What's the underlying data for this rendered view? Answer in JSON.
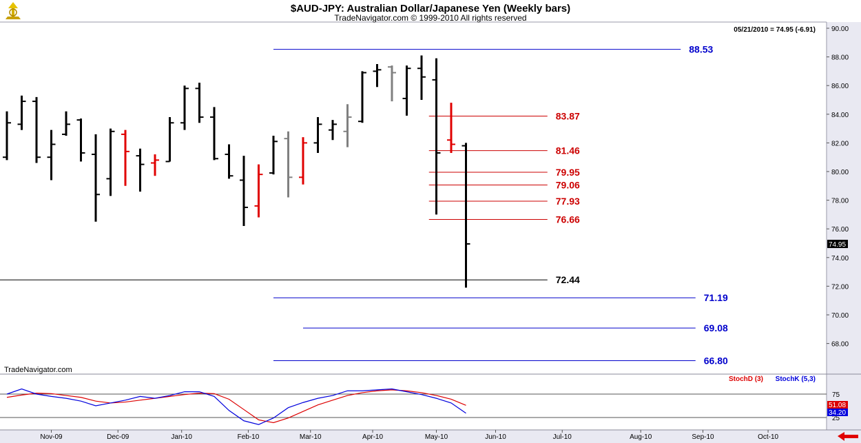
{
  "header": {
    "title": "$AUD-JPY:  Australian Dollar/Japanese Yen  (Weekly bars)",
    "copyright": "TradeNavigator.com © 1999-2010 All rights reserved",
    "last_quote": "05/21/2010 = 74.95 (-6.91)",
    "watermark": "TradeNavigator.com"
  },
  "colors": {
    "up_bar": "#000000",
    "down_bar": "#e00000",
    "neutral_bar": "#808080",
    "fib_red": "#cc0000",
    "fib_blue": "#0000cc",
    "stoch_d": "#dd0000",
    "stoch_k": "#0000dd",
    "axis_bg": "#e9e9f2"
  },
  "chart_data": {
    "type": "bar",
    "subtype": "ohlc",
    "period": "weekly",
    "ylim": [
      66.0,
      90.0
    ],
    "y_ticks": [
      "90.00",
      "88.00",
      "86.00",
      "84.00",
      "82.00",
      "80.00",
      "78.00",
      "76.00",
      "74.00",
      "72.00",
      "70.00",
      "68.00"
    ],
    "x_ticks": [
      "Nov-09",
      "Dec-09",
      "Jan-10",
      "Feb-10",
      "Mar-10",
      "Apr-10",
      "May-10",
      "Jun-10",
      "Jul-10",
      "Aug-10",
      "Sep-10",
      "Oct-10"
    ],
    "last_price_label": "74.95",
    "bars": [
      {
        "w": 0,
        "o": 81.0,
        "h": 84.2,
        "l": 80.8,
        "c": 83.4,
        "color": "black"
      },
      {
        "w": 1,
        "o": 83.3,
        "h": 85.3,
        "l": 82.9,
        "c": 84.9,
        "color": "black"
      },
      {
        "w": 2,
        "o": 84.9,
        "h": 85.2,
        "l": 80.6,
        "c": 81.0,
        "color": "black"
      },
      {
        "w": 3,
        "o": 81.0,
        "h": 82.9,
        "l": 79.4,
        "c": 81.9,
        "color": "black"
      },
      {
        "w": 4,
        "o": 82.6,
        "h": 84.2,
        "l": 82.5,
        "c": 83.3,
        "color": "black"
      },
      {
        "w": 5,
        "o": 83.6,
        "h": 83.7,
        "l": 80.7,
        "c": 81.3,
        "color": "black"
      },
      {
        "w": 6,
        "o": 81.2,
        "h": 82.6,
        "l": 76.5,
        "c": 78.4,
        "color": "black"
      },
      {
        "w": 7,
        "o": 79.5,
        "h": 83.0,
        "l": 78.3,
        "c": 82.8,
        "color": "black"
      },
      {
        "w": 8,
        "o": 82.6,
        "h": 82.9,
        "l": 79.0,
        "c": 81.4,
        "color": "red"
      },
      {
        "w": 9,
        "o": 81.1,
        "h": 81.6,
        "l": 78.6,
        "c": 80.5,
        "color": "black"
      },
      {
        "w": 10,
        "o": 80.6,
        "h": 81.2,
        "l": 79.7,
        "c": 80.8,
        "color": "red"
      },
      {
        "w": 11,
        "o": 80.7,
        "h": 83.8,
        "l": 80.7,
        "c": 83.4,
        "color": "black"
      },
      {
        "w": 12,
        "o": 83.4,
        "h": 86.0,
        "l": 82.9,
        "c": 85.8,
        "color": "black"
      },
      {
        "w": 13,
        "o": 85.8,
        "h": 86.2,
        "l": 83.4,
        "c": 83.8,
        "color": "black"
      },
      {
        "w": 14,
        "o": 83.8,
        "h": 84.5,
        "l": 80.8,
        "c": 80.9,
        "color": "black"
      },
      {
        "w": 15,
        "o": 81.2,
        "h": 81.9,
        "l": 79.5,
        "c": 79.7,
        "color": "black"
      },
      {
        "w": 16,
        "o": 79.4,
        "h": 81.1,
        "l": 76.2,
        "c": 77.5,
        "color": "black"
      },
      {
        "w": 17,
        "o": 77.6,
        "h": 80.5,
        "l": 76.8,
        "c": 79.8,
        "color": "red"
      },
      {
        "w": 18,
        "o": 79.9,
        "h": 82.5,
        "l": 79.8,
        "c": 82.1,
        "color": "black"
      },
      {
        "w": 19,
        "o": 82.3,
        "h": 82.8,
        "l": 78.2,
        "c": 79.6,
        "color": "gray"
      },
      {
        "w": 20,
        "o": 79.6,
        "h": 82.4,
        "l": 79.1,
        "c": 82.0,
        "color": "red"
      },
      {
        "w": 21,
        "o": 82.0,
        "h": 83.8,
        "l": 81.3,
        "c": 83.3,
        "color": "black"
      },
      {
        "w": 22,
        "o": 82.9,
        "h": 83.6,
        "l": 82.2,
        "c": 83.3,
        "color": "black"
      },
      {
        "w": 23,
        "o": 82.8,
        "h": 84.7,
        "l": 81.7,
        "c": 83.8,
        "color": "gray"
      },
      {
        "w": 24,
        "o": 83.5,
        "h": 87.0,
        "l": 83.4,
        "c": 86.9,
        "color": "black"
      },
      {
        "w": 25,
        "o": 87.0,
        "h": 87.5,
        "l": 85.9,
        "c": 87.1,
        "color": "black"
      },
      {
        "w": 26,
        "o": 87.3,
        "h": 87.4,
        "l": 84.9,
        "c": 86.9,
        "color": "gray"
      },
      {
        "w": 27,
        "o": 85.1,
        "h": 87.4,
        "l": 83.9,
        "c": 87.2,
        "color": "black"
      },
      {
        "w": 28,
        "o": 87.2,
        "h": 88.1,
        "l": 85.0,
        "c": 86.6,
        "color": "black"
      },
      {
        "w": 29,
        "o": 86.4,
        "h": 87.9,
        "l": 77.0,
        "c": 81.3,
        "color": "black"
      },
      {
        "w": 30,
        "o": 82.2,
        "h": 84.8,
        "l": 81.3,
        "c": 81.9,
        "color": "red"
      },
      {
        "w": 31,
        "o": 81.8,
        "h": 82.0,
        "l": 71.9,
        "c": 74.95,
        "color": "black"
      }
    ],
    "levels": [
      {
        "label": "88.53",
        "value": 88.53,
        "color": "blue",
        "x0": 18,
        "x1": 45.5
      },
      {
        "label": "83.87",
        "value": 83.87,
        "color": "red",
        "x0": 28.5,
        "x1": 36.5
      },
      {
        "label": "81.46",
        "value": 81.46,
        "color": "red",
        "x0": 28.5,
        "x1": 36.5
      },
      {
        "label": "79.95",
        "value": 79.95,
        "color": "red",
        "x0": 28.5,
        "x1": 36.5
      },
      {
        "label": "79.06",
        "value": 79.06,
        "color": "red",
        "x0": 28.5,
        "x1": 36.5
      },
      {
        "label": "77.93",
        "value": 77.93,
        "color": "red",
        "x0": 28.5,
        "x1": 36.5
      },
      {
        "label": "76.66",
        "value": 76.66,
        "color": "red",
        "x0": 28.5,
        "x1": 36.5
      },
      {
        "label": "72.44",
        "value": 72.44,
        "color": "black",
        "x0": -0.5,
        "x1": 36.5
      },
      {
        "label": "71.19",
        "value": 71.19,
        "color": "blue",
        "x0": 18,
        "x1": 46.5
      },
      {
        "label": "69.08",
        "value": 69.08,
        "color": "blue",
        "x0": 20,
        "x1": 46.5
      },
      {
        "label": "66.80",
        "value": 66.8,
        "color": "blue",
        "x0": 18,
        "x1": 46.5
      }
    ],
    "stochastic": {
      "legend_d": "StochD (3)",
      "legend_k": "StochK (5,3)",
      "value_d": "51.08",
      "value_k": "34.20",
      "tick_75": "75",
      "tick_25": "25",
      "stoch_d": [
        68,
        73,
        77,
        76,
        72,
        68,
        60,
        56,
        58,
        62,
        66,
        70,
        74,
        77,
        76,
        64,
        42,
        20,
        14,
        24,
        38,
        52,
        62,
        72,
        78,
        82,
        84,
        82,
        78,
        72,
        64,
        51.08
      ],
      "stoch_k": [
        75,
        86,
        75,
        70,
        66,
        60,
        50,
        56,
        62,
        70,
        66,
        72,
        80,
        80,
        70,
        40,
        18,
        10,
        24,
        46,
        57,
        66,
        72,
        82,
        82,
        84,
        86,
        80,
        74,
        66,
        56,
        34.2
      ]
    }
  }
}
